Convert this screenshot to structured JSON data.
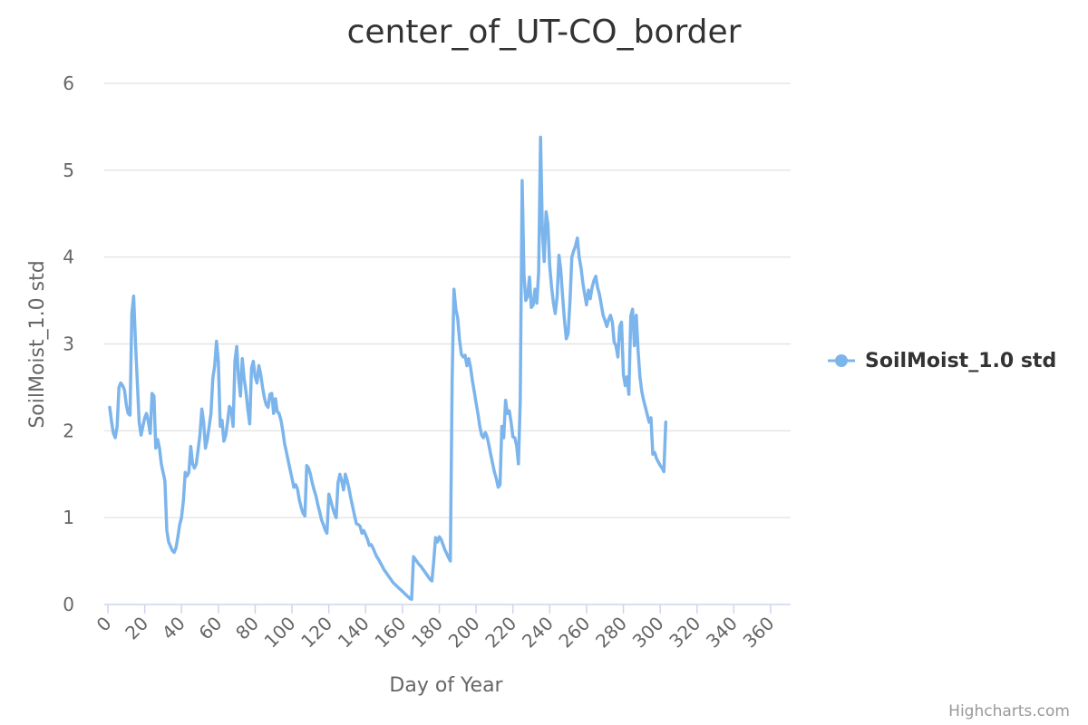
{
  "chart_data": {
    "type": "line",
    "title": "center_of_UT-CO_border",
    "xlabel": "Day of Year",
    "ylabel": "SoilMoist_1.0 std",
    "xlim": [
      0,
      366
    ],
    "ylim": [
      0,
      6
    ],
    "x_ticks": [
      "0",
      "20",
      "40",
      "60",
      "80",
      "100",
      "120",
      "140",
      "160",
      "180",
      "200",
      "220",
      "240",
      "260",
      "280",
      "300",
      "320",
      "340",
      "360"
    ],
    "y_ticks": [
      "0",
      "1",
      "2",
      "3",
      "4",
      "5",
      "6"
    ],
    "grid": true,
    "legend_position": "right",
    "series": [
      {
        "name": "SoilMoist_1.0 std",
        "color": "#7cb5ec",
        "points": [
          [
            1,
            2.27
          ],
          [
            2,
            2.1
          ],
          [
            3,
            1.97
          ],
          [
            4,
            1.92
          ],
          [
            5,
            2.05
          ],
          [
            6,
            2.5
          ],
          [
            7,
            2.55
          ],
          [
            8,
            2.52
          ],
          [
            9,
            2.47
          ],
          [
            10,
            2.3
          ],
          [
            11,
            2.2
          ],
          [
            12,
            2.18
          ],
          [
            13,
            3.35
          ],
          [
            14,
            3.55
          ],
          [
            15,
            3.0
          ],
          [
            16,
            2.55
          ],
          [
            17,
            2.1
          ],
          [
            18,
            1.95
          ],
          [
            19,
            2.05
          ],
          [
            20,
            2.15
          ],
          [
            21,
            2.2
          ],
          [
            22,
            2.1
          ],
          [
            23,
            1.97
          ],
          [
            24,
            2.43
          ],
          [
            25,
            2.4
          ],
          [
            26,
            1.8
          ],
          [
            27,
            1.9
          ],
          [
            28,
            1.8
          ],
          [
            29,
            1.62
          ],
          [
            30,
            1.52
          ],
          [
            31,
            1.42
          ],
          [
            32,
            0.85
          ],
          [
            33,
            0.72
          ],
          [
            34,
            0.67
          ],
          [
            35,
            0.62
          ],
          [
            36,
            0.6
          ],
          [
            37,
            0.65
          ],
          [
            38,
            0.78
          ],
          [
            39,
            0.92
          ],
          [
            40,
            1.0
          ],
          [
            41,
            1.2
          ],
          [
            42,
            1.52
          ],
          [
            43,
            1.48
          ],
          [
            44,
            1.52
          ],
          [
            45,
            1.82
          ],
          [
            46,
            1.62
          ],
          [
            47,
            1.57
          ],
          [
            48,
            1.62
          ],
          [
            49,
            1.78
          ],
          [
            50,
            1.95
          ],
          [
            51,
            2.25
          ],
          [
            52,
            2.1
          ],
          [
            53,
            1.8
          ],
          [
            54,
            1.9
          ],
          [
            55,
            2.05
          ],
          [
            56,
            2.2
          ],
          [
            57,
            2.6
          ],
          [
            58,
            2.75
          ],
          [
            59,
            3.03
          ],
          [
            60,
            2.8
          ],
          [
            61,
            2.05
          ],
          [
            62,
            2.12
          ],
          [
            63,
            1.88
          ],
          [
            64,
            1.95
          ],
          [
            65,
            2.1
          ],
          [
            66,
            2.28
          ],
          [
            67,
            2.25
          ],
          [
            68,
            2.05
          ],
          [
            69,
            2.8
          ],
          [
            70,
            2.97
          ],
          [
            71,
            2.6
          ],
          [
            72,
            2.4
          ],
          [
            73,
            2.83
          ],
          [
            74,
            2.6
          ],
          [
            75,
            2.45
          ],
          [
            76,
            2.25
          ],
          [
            77,
            2.08
          ],
          [
            78,
            2.72
          ],
          [
            79,
            2.8
          ],
          [
            80,
            2.62
          ],
          [
            81,
            2.55
          ],
          [
            82,
            2.75
          ],
          [
            83,
            2.65
          ],
          [
            84,
            2.5
          ],
          [
            85,
            2.38
          ],
          [
            86,
            2.3
          ],
          [
            87,
            2.27
          ],
          [
            88,
            2.42
          ],
          [
            89,
            2.43
          ],
          [
            90,
            2.2
          ],
          [
            91,
            2.37
          ],
          [
            92,
            2.22
          ],
          [
            93,
            2.2
          ],
          [
            94,
            2.12
          ],
          [
            95,
            2.0
          ],
          [
            96,
            1.85
          ],
          [
            97,
            1.75
          ],
          [
            98,
            1.65
          ],
          [
            99,
            1.55
          ],
          [
            100,
            1.45
          ],
          [
            101,
            1.35
          ],
          [
            102,
            1.38
          ],
          [
            103,
            1.33
          ],
          [
            104,
            1.2
          ],
          [
            105,
            1.12
          ],
          [
            106,
            1.05
          ],
          [
            107,
            1.02
          ],
          [
            108,
            1.6
          ],
          [
            109,
            1.57
          ],
          [
            110,
            1.5
          ],
          [
            111,
            1.4
          ],
          [
            112,
            1.32
          ],
          [
            113,
            1.25
          ],
          [
            114,
            1.15
          ],
          [
            115,
            1.07
          ],
          [
            116,
            0.98
          ],
          [
            117,
            0.92
          ],
          [
            118,
            0.86
          ],
          [
            119,
            0.82
          ],
          [
            120,
            1.27
          ],
          [
            121,
            1.2
          ],
          [
            122,
            1.12
          ],
          [
            123,
            1.05
          ],
          [
            124,
            1.0
          ],
          [
            125,
            1.4
          ],
          [
            126,
            1.5
          ],
          [
            127,
            1.42
          ],
          [
            128,
            1.32
          ],
          [
            129,
            1.5
          ],
          [
            130,
            1.42
          ],
          [
            131,
            1.33
          ],
          [
            132,
            1.22
          ],
          [
            133,
            1.12
          ],
          [
            134,
            1.02
          ],
          [
            135,
            0.93
          ],
          [
            136,
            0.92
          ],
          [
            137,
            0.9
          ],
          [
            138,
            0.82
          ],
          [
            139,
            0.85
          ],
          [
            140,
            0.8
          ],
          [
            141,
            0.75
          ],
          [
            142,
            0.68
          ],
          [
            143,
            0.69
          ],
          [
            144,
            0.65
          ],
          [
            145,
            0.6
          ],
          [
            146,
            0.55
          ],
          [
            147,
            0.52
          ],
          [
            148,
            0.48
          ],
          [
            149,
            0.44
          ],
          [
            150,
            0.4
          ],
          [
            151,
            0.37
          ],
          [
            152,
            0.34
          ],
          [
            153,
            0.31
          ],
          [
            154,
            0.28
          ],
          [
            155,
            0.25
          ],
          [
            156,
            0.23
          ],
          [
            157,
            0.21
          ],
          [
            158,
            0.19
          ],
          [
            159,
            0.17
          ],
          [
            160,
            0.15
          ],
          [
            161,
            0.13
          ],
          [
            162,
            0.11
          ],
          [
            163,
            0.09
          ],
          [
            164,
            0.07
          ],
          [
            165,
            0.06
          ],
          [
            166,
            0.55
          ],
          [
            167,
            0.52
          ],
          [
            168,
            0.49
          ],
          [
            169,
            0.46
          ],
          [
            170,
            0.44
          ],
          [
            171,
            0.41
          ],
          [
            172,
            0.38
          ],
          [
            173,
            0.35
          ],
          [
            174,
            0.32
          ],
          [
            175,
            0.29
          ],
          [
            176,
            0.27
          ],
          [
            177,
            0.5
          ],
          [
            178,
            0.77
          ],
          [
            179,
            0.72
          ],
          [
            180,
            0.78
          ],
          [
            181,
            0.75
          ],
          [
            182,
            0.69
          ],
          [
            183,
            0.63
          ],
          [
            184,
            0.59
          ],
          [
            185,
            0.54
          ],
          [
            186,
            0.5
          ],
          [
            187,
            2.6
          ],
          [
            188,
            3.63
          ],
          [
            189,
            3.4
          ],
          [
            190,
            3.3
          ],
          [
            191,
            3.05
          ],
          [
            192,
            2.88
          ],
          [
            193,
            2.85
          ],
          [
            194,
            2.87
          ],
          [
            195,
            2.75
          ],
          [
            196,
            2.83
          ],
          [
            197,
            2.73
          ],
          [
            198,
            2.58
          ],
          [
            199,
            2.45
          ],
          [
            200,
            2.32
          ],
          [
            201,
            2.2
          ],
          [
            202,
            2.05
          ],
          [
            203,
            1.95
          ],
          [
            204,
            1.92
          ],
          [
            205,
            1.98
          ],
          [
            206,
            1.93
          ],
          [
            207,
            1.83
          ],
          [
            208,
            1.72
          ],
          [
            209,
            1.62
          ],
          [
            210,
            1.52
          ],
          [
            211,
            1.45
          ],
          [
            212,
            1.35
          ],
          [
            213,
            1.38
          ],
          [
            214,
            2.05
          ],
          [
            215,
            1.92
          ],
          [
            216,
            2.35
          ],
          [
            217,
            2.2
          ],
          [
            218,
            2.23
          ],
          [
            219,
            2.1
          ],
          [
            220,
            1.93
          ],
          [
            221,
            1.92
          ],
          [
            222,
            1.83
          ],
          [
            223,
            1.62
          ],
          [
            224,
            2.35
          ],
          [
            225,
            4.88
          ],
          [
            226,
            3.8
          ],
          [
            227,
            3.5
          ],
          [
            228,
            3.55
          ],
          [
            229,
            3.77
          ],
          [
            230,
            3.42
          ],
          [
            231,
            3.45
          ],
          [
            232,
            3.63
          ],
          [
            233,
            3.47
          ],
          [
            234,
            3.83
          ],
          [
            235,
            5.38
          ],
          [
            236,
            4.3
          ],
          [
            237,
            3.95
          ],
          [
            238,
            4.52
          ],
          [
            239,
            4.38
          ],
          [
            240,
            3.9
          ],
          [
            241,
            3.65
          ],
          [
            242,
            3.47
          ],
          [
            243,
            3.35
          ],
          [
            244,
            3.55
          ],
          [
            245,
            4.02
          ],
          [
            246,
            3.85
          ],
          [
            247,
            3.55
          ],
          [
            248,
            3.27
          ],
          [
            249,
            3.06
          ],
          [
            250,
            3.12
          ],
          [
            251,
            3.5
          ],
          [
            252,
            4.0
          ],
          [
            253,
            4.07
          ],
          [
            254,
            4.13
          ],
          [
            255,
            4.22
          ],
          [
            256,
            4.0
          ],
          [
            257,
            3.87
          ],
          [
            258,
            3.7
          ],
          [
            259,
            3.57
          ],
          [
            260,
            3.45
          ],
          [
            261,
            3.62
          ],
          [
            262,
            3.52
          ],
          [
            263,
            3.65
          ],
          [
            264,
            3.73
          ],
          [
            265,
            3.78
          ],
          [
            266,
            3.65
          ],
          [
            267,
            3.57
          ],
          [
            268,
            3.45
          ],
          [
            269,
            3.33
          ],
          [
            270,
            3.27
          ],
          [
            271,
            3.2
          ],
          [
            272,
            3.28
          ],
          [
            273,
            3.33
          ],
          [
            274,
            3.25
          ],
          [
            275,
            3.02
          ],
          [
            276,
            2.98
          ],
          [
            277,
            2.85
          ],
          [
            278,
            3.2
          ],
          [
            279,
            3.25
          ],
          [
            280,
            2.65
          ],
          [
            281,
            2.52
          ],
          [
            282,
            2.62
          ],
          [
            283,
            2.42
          ],
          [
            284,
            3.32
          ],
          [
            285,
            3.4
          ],
          [
            286,
            2.98
          ],
          [
            287,
            3.33
          ],
          [
            288,
            2.92
          ],
          [
            289,
            2.62
          ],
          [
            290,
            2.45
          ],
          [
            291,
            2.35
          ],
          [
            292,
            2.27
          ],
          [
            293,
            2.18
          ],
          [
            294,
            2.1
          ],
          [
            295,
            2.15
          ],
          [
            296,
            1.73
          ],
          [
            297,
            1.75
          ],
          [
            298,
            1.68
          ],
          [
            299,
            1.64
          ],
          [
            300,
            1.6
          ],
          [
            301,
            1.57
          ],
          [
            302,
            1.53
          ],
          [
            303,
            2.1
          ]
        ]
      }
    ]
  },
  "credits": "Highcharts.com"
}
